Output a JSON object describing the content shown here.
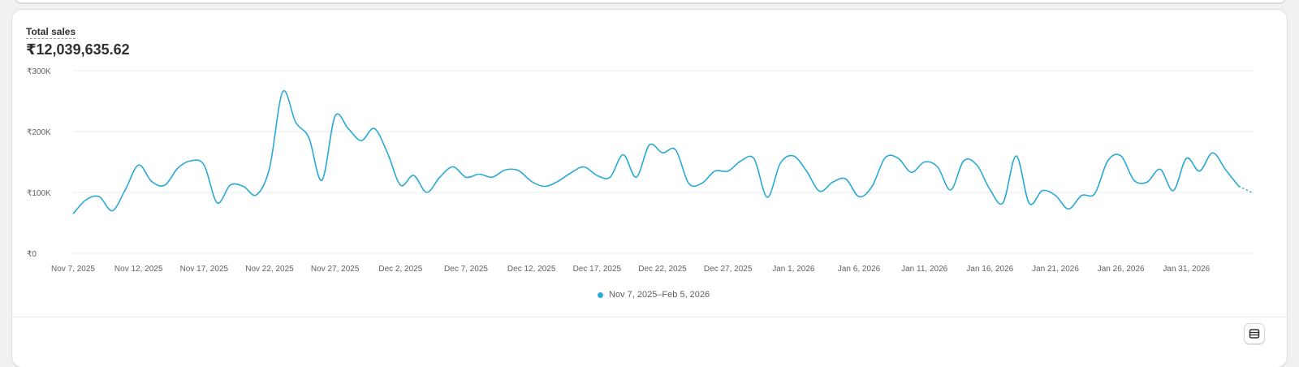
{
  "metric": {
    "title": "Total sales",
    "value": "₹12,039,635.62"
  },
  "legend": {
    "label": "Nov 7, 2025–Feb 5, 2026"
  },
  "colors": {
    "series": "#29a9d6",
    "grid": "#ebebeb",
    "axis_text": "#616161"
  },
  "icons": {
    "table_toggle": "table-icon"
  },
  "chart_data": {
    "type": "line",
    "title": "Total sales",
    "xlabel": "",
    "ylabel": "",
    "ylim": [
      0,
      300000
    ],
    "y_ticks": [
      {
        "value": 0,
        "label": "₹0"
      },
      {
        "value": 100000,
        "label": "₹100K"
      },
      {
        "value": 200000,
        "label": "₹200K"
      },
      {
        "value": 300000,
        "label": "₹300K"
      }
    ],
    "x_tick_labels": [
      "Nov 7, 2025",
      "Nov 12, 2025",
      "Nov 17, 2025",
      "Nov 22, 2025",
      "Nov 27, 2025",
      "Dec 2, 2025",
      "Dec 7, 2025",
      "Dec 12, 2025",
      "Dec 17, 2025",
      "Dec 22, 2025",
      "Dec 27, 2025",
      "Jan 1, 2026",
      "Jan 6, 2026",
      "Jan 11, 2026",
      "Jan 16, 2026",
      "Jan 21, 2026",
      "Jan 26, 2026",
      "Jan 31, 2026"
    ],
    "x_tick_index": [
      0,
      5,
      10,
      15,
      20,
      25,
      30,
      35,
      40,
      45,
      50,
      55,
      60,
      65,
      70,
      75,
      80,
      85
    ],
    "grid": true,
    "legend_position": "bottom-center",
    "series": [
      {
        "name": "Nov 7, 2025–Feb 5, 2026",
        "color": "#29a9d6",
        "dashed_last_segment": true,
        "values": [
          65000,
          88000,
          93000,
          70000,
          105000,
          145000,
          118000,
          112000,
          140000,
          152000,
          145000,
          83000,
          112000,
          110000,
          96000,
          140000,
          265000,
          215000,
          190000,
          120000,
          225000,
          205000,
          185000,
          205000,
          165000,
          112000,
          128000,
          100000,
          125000,
          142000,
          125000,
          130000,
          125000,
          137000,
          136000,
          118000,
          110000,
          118000,
          132000,
          142000,
          128000,
          125000,
          162000,
          125000,
          178000,
          165000,
          170000,
          115000,
          115000,
          135000,
          135000,
          152000,
          155000,
          92000,
          148000,
          160000,
          135000,
          102000,
          117000,
          122000,
          93000,
          110000,
          157000,
          156000,
          133000,
          150000,
          142000,
          104000,
          152000,
          145000,
          105000,
          83000,
          160000,
          82000,
          103000,
          95000,
          73000,
          95000,
          98000,
          152000,
          160000,
          120000,
          117000,
          138000,
          103000,
          156000,
          135000,
          165000,
          137000,
          110000,
          100000
        ]
      }
    ]
  }
}
